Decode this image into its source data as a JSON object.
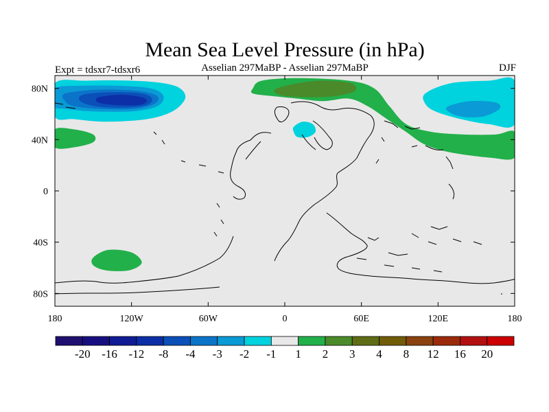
{
  "chart_data": {
    "type": "heatmap",
    "title": "Mean Sea Level Pressure (in hPa)",
    "left_label": "Expt = tdsxr7-tdsxr6",
    "center_label": "Asselian 297MaBP - Asselian 297MaBP",
    "right_label": "DJF",
    "x_range": [
      -180,
      180
    ],
    "y_range": [
      -90,
      90
    ],
    "x_ticks": [
      {
        "value": -180,
        "label": "180"
      },
      {
        "value": -120,
        "label": "120W"
      },
      {
        "value": -60,
        "label": "60W"
      },
      {
        "value": 0,
        "label": "0"
      },
      {
        "value": 60,
        "label": "60E"
      },
      {
        "value": 120,
        "label": "120E"
      },
      {
        "value": 180,
        "label": "180"
      }
    ],
    "y_ticks": [
      {
        "value": 80,
        "label": "80N"
      },
      {
        "value": 40,
        "label": "40N"
      },
      {
        "value": 0,
        "label": "0"
      },
      {
        "value": -40,
        "label": "40S"
      },
      {
        "value": -80,
        "label": "80S"
      }
    ],
    "colorbar": {
      "colors": [
        "#1f0f6e",
        "#170f80",
        "#0f1c93",
        "#0c2ea6",
        "#0b4fb8",
        "#0b74c9",
        "#0a9ad5",
        "#00d2de",
        "#e8e8e8",
        "#22b04a",
        "#4a8a2a",
        "#5e6d15",
        "#715c0a",
        "#8a4210",
        "#9b2a0a",
        "#b21010",
        "#cc0000"
      ],
      "labels": [
        "-20",
        "-16",
        "-12",
        "-8",
        "-4",
        "-3",
        "-2",
        "-1",
        "1",
        "2",
        "3",
        "4",
        "8",
        "12",
        "16",
        "20"
      ]
    },
    "background_color": "#e8e8e8",
    "contour_regions": [
      {
        "name": "north-pacific-low-outer",
        "level": -1,
        "color": "#00d2de",
        "points": [
          [
            -180,
            84
          ],
          [
            -155,
            86
          ],
          [
            -120,
            86
          ],
          [
            -95,
            84
          ],
          [
            -82,
            80
          ],
          [
            -78,
            72
          ],
          [
            -88,
            62
          ],
          [
            -108,
            56
          ],
          [
            -140,
            54
          ],
          [
            -165,
            56
          ],
          [
            -180,
            58
          ]
        ]
      },
      {
        "name": "north-pacific-low-2",
        "level": -2,
        "color": "#0a9ad5",
        "points": [
          [
            -180,
            80
          ],
          [
            -160,
            82
          ],
          [
            -130,
            82
          ],
          [
            -105,
            80
          ],
          [
            -95,
            74
          ],
          [
            -100,
            66
          ],
          [
            -120,
            62
          ],
          [
            -150,
            62
          ],
          [
            -172,
            64
          ],
          [
            -180,
            66
          ]
        ]
      },
      {
        "name": "north-pacific-low-3",
        "level": -3,
        "color": "#0b74c9",
        "points": [
          [
            -172,
            76
          ],
          [
            -145,
            79
          ],
          [
            -115,
            78
          ],
          [
            -100,
            74
          ],
          [
            -102,
            68
          ],
          [
            -118,
            64
          ],
          [
            -145,
            64
          ],
          [
            -165,
            66
          ],
          [
            -172,
            70
          ]
        ]
      },
      {
        "name": "north-pacific-low-4",
        "level": -4,
        "color": "#0b4fb8",
        "points": [
          [
            -158,
            75
          ],
          [
            -135,
            77
          ],
          [
            -112,
            76
          ],
          [
            -104,
            72
          ],
          [
            -108,
            67
          ],
          [
            -125,
            65
          ],
          [
            -148,
            66
          ],
          [
            -160,
            70
          ]
        ]
      },
      {
        "name": "north-pacific-low-8",
        "level": -8,
        "color": "#0c2ea6",
        "points": [
          [
            -146,
            73
          ],
          [
            -128,
            75
          ],
          [
            -112,
            73
          ],
          [
            -108,
            70
          ],
          [
            -114,
            67
          ],
          [
            -132,
            67
          ],
          [
            -146,
            69
          ]
        ]
      },
      {
        "name": "east-asia-low-outer",
        "level": -1,
        "color": "#00d2de",
        "points": [
          [
            110,
            76
          ],
          [
            130,
            84
          ],
          [
            160,
            86
          ],
          [
            180,
            86
          ],
          [
            180,
            52
          ],
          [
            160,
            52
          ],
          [
            138,
            56
          ],
          [
            118,
            62
          ],
          [
            110,
            68
          ]
        ]
      },
      {
        "name": "east-asia-low-2",
        "level": -2,
        "color": "#0a9ad5",
        "points": [
          [
            128,
            66
          ],
          [
            145,
            70
          ],
          [
            165,
            69
          ],
          [
            168,
            64
          ],
          [
            155,
            58
          ],
          [
            138,
            58
          ],
          [
            128,
            62
          ]
        ]
      },
      {
        "name": "europe-low",
        "level": -1,
        "color": "#00d2de",
        "points": [
          [
            7,
            50
          ],
          [
            14,
            54
          ],
          [
            22,
            52
          ],
          [
            24,
            46
          ],
          [
            18,
            42
          ],
          [
            10,
            42
          ],
          [
            7,
            46
          ]
        ]
      },
      {
        "name": "arctic-high-outer",
        "level": 1,
        "color": "#22b04a",
        "points": [
          [
            -25,
            80
          ],
          [
            -18,
            86
          ],
          [
            10,
            88
          ],
          [
            50,
            86
          ],
          [
            70,
            80
          ],
          [
            82,
            66
          ],
          [
            95,
            52
          ],
          [
            115,
            46
          ],
          [
            140,
            44
          ],
          [
            165,
            44
          ],
          [
            180,
            46
          ],
          [
            180,
            26
          ],
          [
            160,
            26
          ],
          [
            130,
            30
          ],
          [
            110,
            36
          ],
          [
            95,
            46
          ],
          [
            80,
            56
          ],
          [
            65,
            66
          ],
          [
            50,
            72
          ],
          [
            30,
            70
          ],
          [
            10,
            72
          ],
          [
            -10,
            74
          ],
          [
            -25,
            76
          ]
        ]
      },
      {
        "name": "arctic-high-2",
        "level": 2,
        "color": "#4a8a2a",
        "points": [
          [
            -6,
            80
          ],
          [
            10,
            84
          ],
          [
            30,
            86
          ],
          [
            52,
            84
          ],
          [
            55,
            78
          ],
          [
            40,
            74
          ],
          [
            20,
            73
          ],
          [
            0,
            74
          ],
          [
            -8,
            77
          ]
        ]
      },
      {
        "name": "north-atlantic-high",
        "level": 1,
        "color": "#22b04a",
        "points": [
          [
            -180,
            48
          ],
          [
            -165,
            48
          ],
          [
            -150,
            44
          ],
          [
            -150,
            38
          ],
          [
            -165,
            34
          ],
          [
            -180,
            34
          ]
        ]
      },
      {
        "name": "south-pacific-high",
        "level": 1,
        "color": "#22b04a",
        "points": [
          [
            -150,
            -52
          ],
          [
            -138,
            -46
          ],
          [
            -120,
            -48
          ],
          [
            -112,
            -56
          ],
          [
            -122,
            -62
          ],
          [
            -140,
            -62
          ],
          [
            -150,
            -58
          ]
        ]
      }
    ]
  }
}
